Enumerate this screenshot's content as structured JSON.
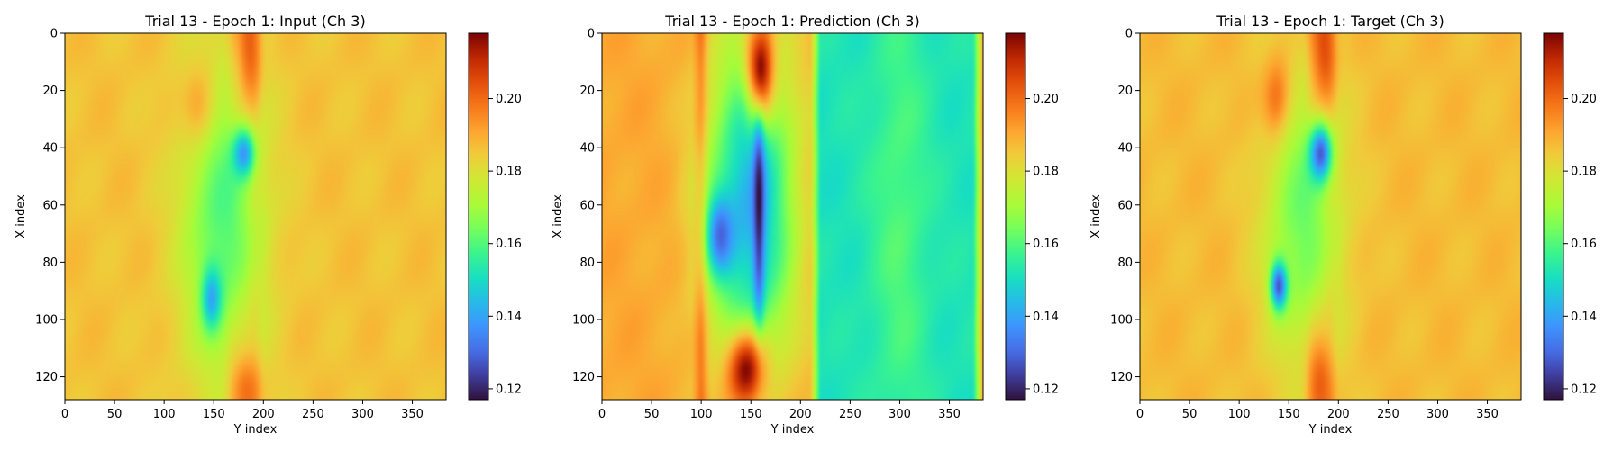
{
  "chart_data": [
    {
      "type": "heatmap",
      "title": "Trial 13 - Epoch 1: Input (Ch 3)",
      "xlabel": "Y index",
      "ylabel": "X index",
      "xlim": [
        0,
        384
      ],
      "ylim": [
        128,
        0
      ],
      "xticks": [
        0,
        50,
        100,
        150,
        200,
        250,
        300,
        350
      ],
      "yticks": [
        0,
        20,
        40,
        60,
        80,
        100,
        120
      ],
      "colorbar": {
        "range": [
          0.117,
          0.218
        ],
        "ticks": [
          0.12,
          0.14,
          0.16,
          0.18,
          0.2
        ],
        "tick_labels": [
          "0.12",
          "0.14",
          "0.16",
          "0.18",
          "0.20"
        ],
        "colormap": "turbo"
      },
      "background_value": 0.186,
      "features": [
        {
          "kind": "band",
          "x_from": 160,
          "x_to": 200,
          "value": 0.195
        },
        {
          "kind": "blob",
          "x": 140,
          "y": 28,
          "sx": 12,
          "sy": 10,
          "value": 0.217
        },
        {
          "kind": "blob",
          "x": 185,
          "y": 8,
          "sx": 8,
          "sy": 14,
          "value": 0.216
        },
        {
          "kind": "blob",
          "x": 180,
          "y": 122,
          "sx": 10,
          "sy": 8,
          "value": 0.212
        },
        {
          "kind": "blob",
          "x": 160,
          "y": 65,
          "sx": 30,
          "sy": 40,
          "value": 0.16
        },
        {
          "kind": "blob",
          "x": 180,
          "y": 42,
          "sx": 8,
          "sy": 6,
          "value": 0.138
        },
        {
          "kind": "blob",
          "x": 148,
          "y": 92,
          "sx": 7,
          "sy": 8,
          "value": 0.14
        }
      ]
    },
    {
      "type": "heatmap",
      "title": "Trial 13 - Epoch 1: Prediction (Ch 3)",
      "xlabel": "Y index",
      "ylabel": "X index",
      "xlim": [
        0,
        384
      ],
      "ylim": [
        128,
        0
      ],
      "xticks": [
        0,
        50,
        100,
        150,
        200,
        250,
        300,
        350
      ],
      "yticks": [
        0,
        20,
        40,
        60,
        80,
        100,
        120
      ],
      "colorbar": {
        "range": [
          0.117,
          0.218
        ],
        "ticks": [
          0.12,
          0.14,
          0.16,
          0.18,
          0.2
        ],
        "tick_labels": [
          "0.12",
          "0.14",
          "0.16",
          "0.18",
          "0.20"
        ],
        "colormap": "turbo"
      },
      "background_value": 0.19,
      "features": [
        {
          "kind": "band",
          "x_from": 210,
          "x_to": 384,
          "value": 0.152
        },
        {
          "kind": "band",
          "x_from": 90,
          "x_to": 110,
          "value": 0.205
        },
        {
          "kind": "blob",
          "x": 150,
          "y": 60,
          "sx": 32,
          "sy": 42,
          "value": 0.142
        },
        {
          "kind": "blob",
          "x": 158,
          "y": 60,
          "sx": 4,
          "sy": 28,
          "value": 0.118
        },
        {
          "kind": "blob",
          "x": 120,
          "y": 70,
          "sx": 10,
          "sy": 10,
          "value": 0.13
        },
        {
          "kind": "blob",
          "x": 145,
          "y": 118,
          "sx": 14,
          "sy": 10,
          "value": 0.217
        },
        {
          "kind": "blob",
          "x": 160,
          "y": 12,
          "sx": 10,
          "sy": 12,
          "value": 0.216
        },
        {
          "kind": "blob",
          "x": 300,
          "y": 65,
          "sx": 20,
          "sy": 60,
          "value": 0.16
        }
      ]
    },
    {
      "type": "heatmap",
      "title": "Trial 13 - Epoch 1: Target (Ch 3)",
      "xlabel": "Y index",
      "ylabel": "X index",
      "xlim": [
        0,
        384
      ],
      "ylim": [
        128,
        0
      ],
      "xticks": [
        0,
        50,
        100,
        150,
        200,
        250,
        300,
        350
      ],
      "yticks": [
        0,
        20,
        40,
        60,
        80,
        100,
        120
      ],
      "colorbar": {
        "range": [
          0.117,
          0.218
        ],
        "ticks": [
          0.12,
          0.14,
          0.16,
          0.18,
          0.2
        ],
        "tick_labels": [
          "0.12",
          "0.14",
          "0.16",
          "0.18",
          "0.20"
        ],
        "colormap": "turbo"
      },
      "background_value": 0.187,
      "features": [
        {
          "kind": "band",
          "x_from": 165,
          "x_to": 200,
          "value": 0.196
        },
        {
          "kind": "blob",
          "x": 140,
          "y": 25,
          "sx": 10,
          "sy": 10,
          "value": 0.216
        },
        {
          "kind": "blob",
          "x": 185,
          "y": 8,
          "sx": 8,
          "sy": 14,
          "value": 0.216
        },
        {
          "kind": "blob",
          "x": 180,
          "y": 118,
          "sx": 8,
          "sy": 10,
          "value": 0.214
        },
        {
          "kind": "blob",
          "x": 165,
          "y": 65,
          "sx": 28,
          "sy": 35,
          "value": 0.163
        },
        {
          "kind": "blob",
          "x": 182,
          "y": 42,
          "sx": 8,
          "sy": 7,
          "value": 0.128
        },
        {
          "kind": "blob",
          "x": 140,
          "y": 88,
          "sx": 6,
          "sy": 6,
          "value": 0.126
        }
      ]
    }
  ]
}
